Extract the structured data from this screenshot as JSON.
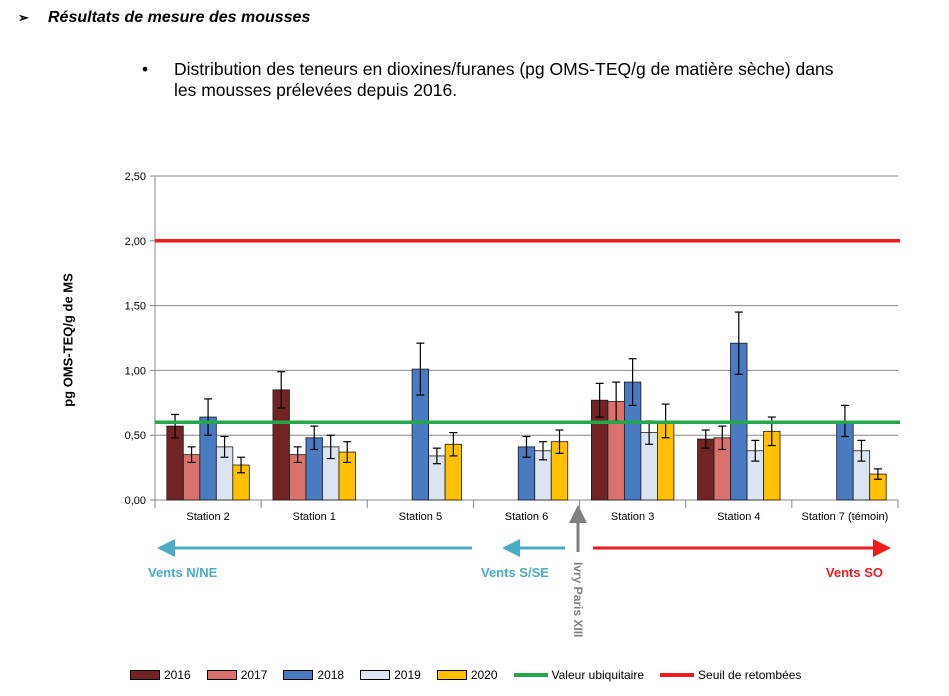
{
  "header": {
    "arrow_icon": "arrowhead-bullet",
    "title": "Résultats de mesure des mousses",
    "bullet_icon": "round-bullet",
    "description_line1": "Distribution des teneurs en dioxines/furanes (pg OMS-TEQ/g de matière sèche) dans",
    "description_line2": "les mousses prélevées depuis 2016."
  },
  "chart_data": {
    "type": "bar",
    "ylabel": "pg OMS-TEQ/g de MS",
    "ylim": [
      0,
      2.5
    ],
    "yticks": [
      "0,00",
      "0,50",
      "1,00",
      "1,50",
      "2,00",
      "2,50"
    ],
    "grid": true,
    "categories": [
      "Station 2",
      "Station 1",
      "Station 5",
      "Station 6",
      "Station 3",
      "Station 4",
      "Station 7 (témoin)"
    ],
    "series": [
      {
        "name": "2016",
        "color": "#722323",
        "values": [
          0.57,
          0.85,
          null,
          null,
          0.77,
          0.47,
          null
        ],
        "errors": [
          0.09,
          0.14,
          null,
          null,
          0.13,
          0.07,
          null
        ]
      },
      {
        "name": "2017",
        "color": "#d9716c",
        "values": [
          0.35,
          0.35,
          null,
          null,
          0.76,
          0.48,
          null
        ],
        "errors": [
          0.06,
          0.06,
          null,
          null,
          0.15,
          0.09,
          null
        ]
      },
      {
        "name": "2018",
        "color": "#4a7abf",
        "values": [
          0.64,
          0.48,
          1.01,
          0.41,
          0.91,
          1.21,
          0.61
        ],
        "errors": [
          0.14,
          0.09,
          0.2,
          0.08,
          0.18,
          0.24,
          0.12
        ]
      },
      {
        "name": "2019",
        "color": "#dbe4f0",
        "values": [
          0.41,
          0.41,
          0.34,
          0.38,
          0.52,
          0.38,
          0.38
        ],
        "errors": [
          0.08,
          0.09,
          0.06,
          0.07,
          0.09,
          0.08,
          0.08
        ]
      },
      {
        "name": "2020",
        "color": "#ffc000",
        "values": [
          0.27,
          0.37,
          0.43,
          0.45,
          0.61,
          0.53,
          0.2
        ],
        "errors": [
          0.06,
          0.08,
          0.09,
          0.09,
          0.13,
          0.11,
          0.04
        ]
      }
    ],
    "reference_lines": [
      {
        "name": "Valeur ubiquitaire",
        "value": 0.6,
        "color": "#22a84b"
      },
      {
        "name": "Seuil de retombées",
        "value": 2.0,
        "color": "#ee1c1c"
      }
    ],
    "annotations": {
      "wind_ne": {
        "label": "Vents N/NE",
        "color": "#4bacc6",
        "direction": "left"
      },
      "wind_se": {
        "label": "Vents S/SE",
        "color": "#4bacc6",
        "direction": "left"
      },
      "wind_so": {
        "label": "Vents SO",
        "color": "#ee1c1c",
        "direction": "right"
      },
      "site": {
        "label": "Ivry Paris XIII",
        "color": "#808080",
        "direction": "up"
      }
    },
    "legend_position": "bottom"
  }
}
